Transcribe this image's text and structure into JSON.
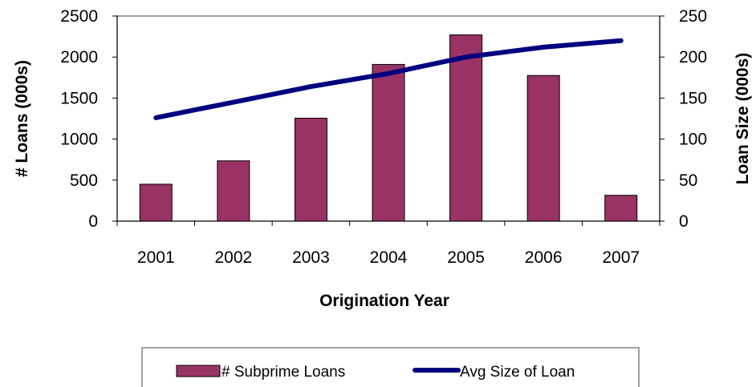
{
  "chart_data": {
    "type": "bar",
    "title": "",
    "categories": [
      "2001",
      "2002",
      "2003",
      "2004",
      "2005",
      "2006",
      "2007"
    ],
    "xlabel": "Origination Year",
    "ylabel": "# Loans (000s)",
    "y2label": "Loan Size (000s)",
    "ylim": [
      0,
      2500
    ],
    "y2lim": [
      0,
      250
    ],
    "yticks": [
      "0",
      "500",
      "1000",
      "1500",
      "2000",
      "2500"
    ],
    "y2ticks": [
      "0",
      "50",
      "100",
      "150",
      "200",
      "250"
    ],
    "grid": false,
    "legend_position": "bottom",
    "series": [
      {
        "name": "# Subprime Loans",
        "type": "bar",
        "axis": "left",
        "color": "#993366",
        "values": [
          450,
          735,
          1255,
          1910,
          2270,
          1775,
          315
        ]
      },
      {
        "name": "Avg Size of Loan",
        "type": "line",
        "axis": "right",
        "color": "#000080",
        "values": [
          126,
          145,
          164,
          180,
          200,
          212,
          220
        ]
      }
    ]
  }
}
